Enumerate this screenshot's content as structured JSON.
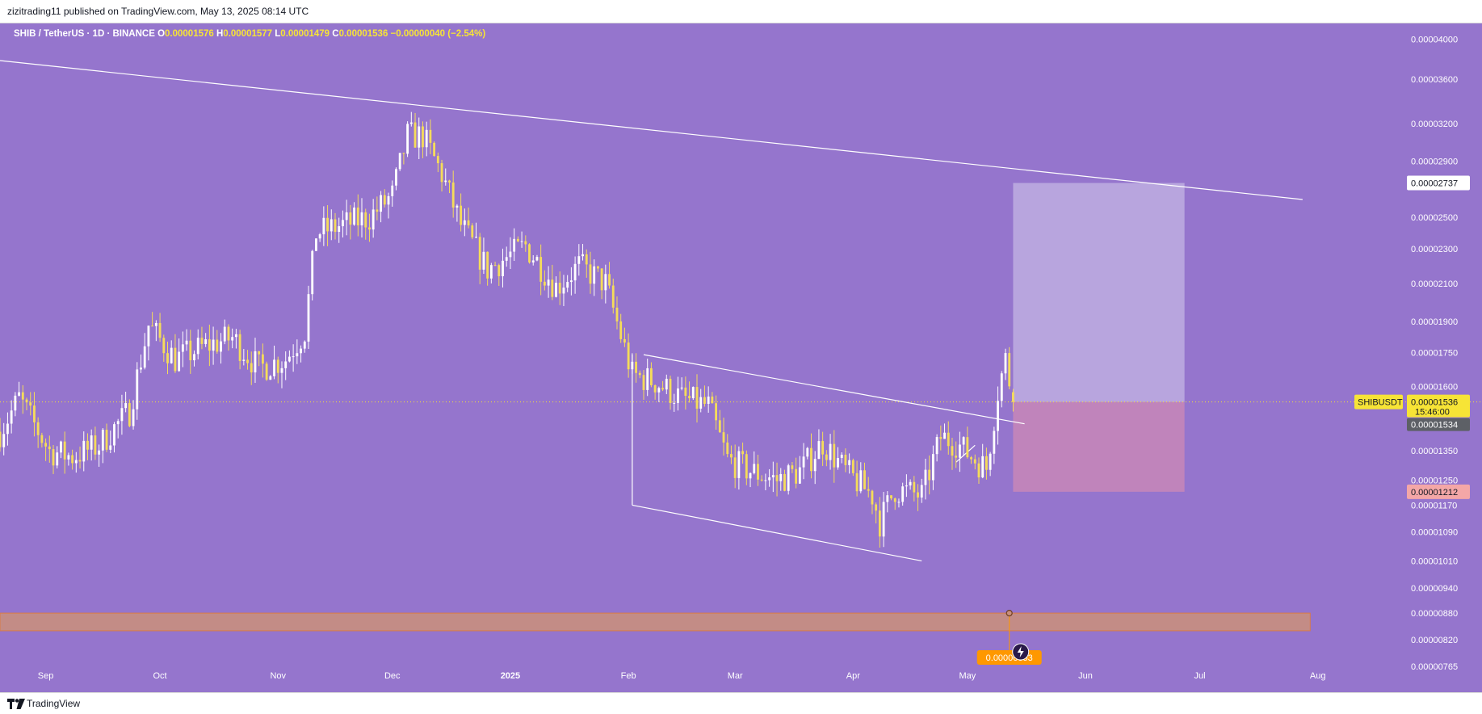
{
  "header": {
    "published_text": "zizitrading11 published on TradingView.com, May 13, 2025 08:14 UTC"
  },
  "legend": {
    "symbol": "SHIB / TetherUS · 1D · BINANCE",
    "o_label": "O",
    "o_value": "0.00001576",
    "h_label": "H",
    "h_value": "0.00001577",
    "l_label": "L",
    "l_value": "0.00001479",
    "c_label": "C",
    "c_value": "0.00001536",
    "change": "−0.00000040 (−2.54%)"
  },
  "footer": {
    "brand": "TradingView"
  },
  "colors": {
    "background": "#9575cd",
    "candle_up": "#ffffff",
    "candle_down": "#f5dc5a",
    "target_zone": "#b8a5de",
    "stop_zone": "#c084bb",
    "support_band": "#c98f7f",
    "price_tag": "#f7e436",
    "badge_orange": "#ff9800"
  },
  "chart_data": {
    "type": "candlestick",
    "log_scale": true,
    "y_ticks": [
      "0.00004000",
      "0.00003600",
      "0.00003200",
      "0.00002900",
      "0.00002500",
      "0.00002300",
      "0.00002100",
      "0.00001900",
      "0.00001750",
      "0.00001600",
      "0.00001350",
      "0.00001250",
      "0.00001170",
      "0.00001090",
      "0.00001010",
      "0.00000940",
      "0.00000880",
      "0.00000820",
      "0.00000765"
    ],
    "x_ticks": [
      {
        "label": "Sep",
        "x": "2024-09-01"
      },
      {
        "label": "Oct",
        "x": "2024-10-01"
      },
      {
        "label": "Nov",
        "x": "2024-11-01"
      },
      {
        "label": "Dec",
        "x": "2024-12-01"
      },
      {
        "label": "2025",
        "x": "2025-01-01"
      },
      {
        "label": "Feb",
        "x": "2025-02-01"
      },
      {
        "label": "Mar",
        "x": "2025-03-01"
      },
      {
        "label": "Apr",
        "x": "2025-04-01"
      },
      {
        "label": "May",
        "x": "2025-05-01"
      },
      {
        "label": "Jun",
        "x": "2025-06-01"
      },
      {
        "label": "Jul",
        "x": "2025-07-01"
      },
      {
        "label": "Aug",
        "x": "2025-08-01"
      }
    ],
    "x_range": [
      "2024-08-20",
      "2025-08-07"
    ],
    "y_range": [
      7.55e-06,
      4.09e-05
    ],
    "price_path": [
      [
        "2024-08-20",
        1.42e-05
      ],
      [
        "2024-08-25",
        1.55e-05
      ],
      [
        "2024-09-02",
        1.35e-05
      ],
      [
        "2024-09-08",
        1.33e-05
      ],
      [
        "2024-09-15",
        1.37e-05
      ],
      [
        "2024-09-23",
        1.5e-05
      ],
      [
        "2024-09-28",
        1.88e-05
      ],
      [
        "2024-10-05",
        1.72e-05
      ],
      [
        "2024-10-13",
        1.78e-05
      ],
      [
        "2024-10-20",
        1.82e-05
      ],
      [
        "2024-10-27",
        1.68e-05
      ],
      [
        "2024-11-03",
        1.72e-05
      ],
      [
        "2024-11-08",
        1.85e-05
      ],
      [
        "2024-11-11",
        2.4e-05
      ],
      [
        "2024-11-18",
        2.45e-05
      ],
      [
        "2024-11-25",
        2.5e-05
      ],
      [
        "2024-12-01",
        2.65e-05
      ],
      [
        "2024-12-05",
        3.1e-05
      ],
      [
        "2024-12-09",
        3.1e-05
      ],
      [
        "2024-12-14",
        2.8e-05
      ],
      [
        "2024-12-19",
        2.45e-05
      ],
      [
        "2024-12-26",
        2.18e-05
      ],
      [
        "2025-01-05",
        2.32e-05
      ],
      [
        "2025-01-13",
        2.08e-05
      ],
      [
        "2025-01-19",
        2.2e-05
      ],
      [
        "2025-01-26",
        2.1e-05
      ],
      [
        "2025-02-02",
        1.65e-05
      ],
      [
        "2025-02-08",
        1.62e-05
      ],
      [
        "2025-02-15",
        1.55e-05
      ],
      [
        "2025-02-22",
        1.52e-05
      ],
      [
        "2025-02-27",
        1.32e-05
      ],
      [
        "2025-03-05",
        1.28e-05
      ],
      [
        "2025-03-12",
        1.25e-05
      ],
      [
        "2025-03-18",
        1.28e-05
      ],
      [
        "2025-03-24",
        1.38e-05
      ],
      [
        "2025-03-30",
        1.28e-05
      ],
      [
        "2025-04-06",
        1.2e-05
      ],
      [
        "2025-04-08",
        1.12e-05
      ],
      [
        "2025-04-12",
        1.22e-05
      ],
      [
        "2025-04-19",
        1.2e-05
      ],
      [
        "2025-04-24",
        1.4e-05
      ],
      [
        "2025-04-28",
        1.38e-05
      ],
      [
        "2025-05-02",
        1.33e-05
      ],
      [
        "2025-05-06",
        1.29e-05
      ],
      [
        "2025-05-09",
        1.58e-05
      ],
      [
        "2025-05-11",
        1.72e-05
      ],
      [
        "2025-05-13",
        1.536e-05
      ]
    ],
    "last_close": 1.536e-05,
    "trendlines": [
      {
        "from": [
          "2024-08-20",
          3.78e-05
        ],
        "to": [
          "2025-07-28",
          2.62e-05
        ]
      },
      {
        "from": [
          "2025-02-05",
          1.74e-05
        ],
        "to": [
          "2025-05-16",
          1.45e-05
        ]
      },
      {
        "from": [
          "2025-02-02",
          1.17e-05
        ],
        "to": [
          "2025-04-19",
          1.01e-05
        ]
      },
      {
        "from": [
          "2025-02-02",
          1.74e-05
        ],
        "to": [
          "2025-02-02",
          1.17e-05
        ]
      },
      {
        "from": [
          "2025-04-28",
          1.31e-05
        ],
        "to": [
          "2025-05-03",
          1.37e-05
        ]
      }
    ],
    "position": {
      "entry": 1.536e-05,
      "target": 2.737e-05,
      "stop": 1.212e-05,
      "start": "2025-05-13",
      "end": "2025-06-27"
    },
    "support_zone": {
      "top": 8.8e-06,
      "bottom": 8.4e-06,
      "start": "2024-08-20",
      "end": "2025-07-30"
    },
    "price_labels": {
      "symbol_tag": "SHIBUSDT",
      "last_price": "0.00001536",
      "countdown": "15:46:00",
      "prev_price": "0.00001534",
      "target_price": "0.00002737",
      "stop_price": "0.00001212",
      "marker_price": "0.00000853"
    }
  }
}
